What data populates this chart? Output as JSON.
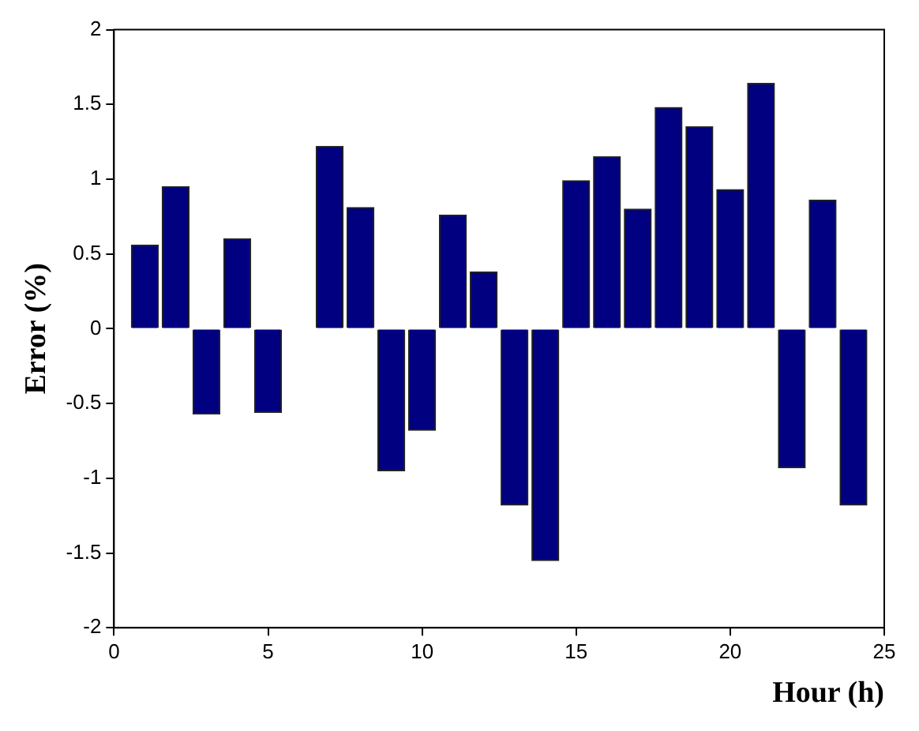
{
  "chart_data": {
    "type": "bar",
    "xlabel": "Hour (h)",
    "ylabel": "Error (%)",
    "x": [
      1,
      2,
      3,
      4,
      5,
      6,
      7,
      8,
      9,
      10,
      11,
      12,
      13,
      14,
      15,
      16,
      17,
      18,
      19,
      20,
      21,
      22,
      23,
      24
    ],
    "values": [
      0.56,
      0.95,
      -0.57,
      0.6,
      -0.56,
      0,
      1.22,
      0.81,
      -0.95,
      -0.68,
      0.76,
      0.38,
      -1.18,
      -1.55,
      0.99,
      1.15,
      0.8,
      1.48,
      1.35,
      0.93,
      1.64,
      -0.93,
      0.86,
      -1.18
    ],
    "color": "#000080",
    "xlim": [
      0,
      25
    ],
    "xticks": [
      0,
      5,
      10,
      15,
      20,
      25
    ],
    "ylim": [
      -2,
      2
    ],
    "yticks": [
      -2,
      -1.5,
      -1,
      -0.5,
      0,
      0.5,
      1,
      1.5,
      2
    ],
    "grid": false,
    "legend": false
  }
}
